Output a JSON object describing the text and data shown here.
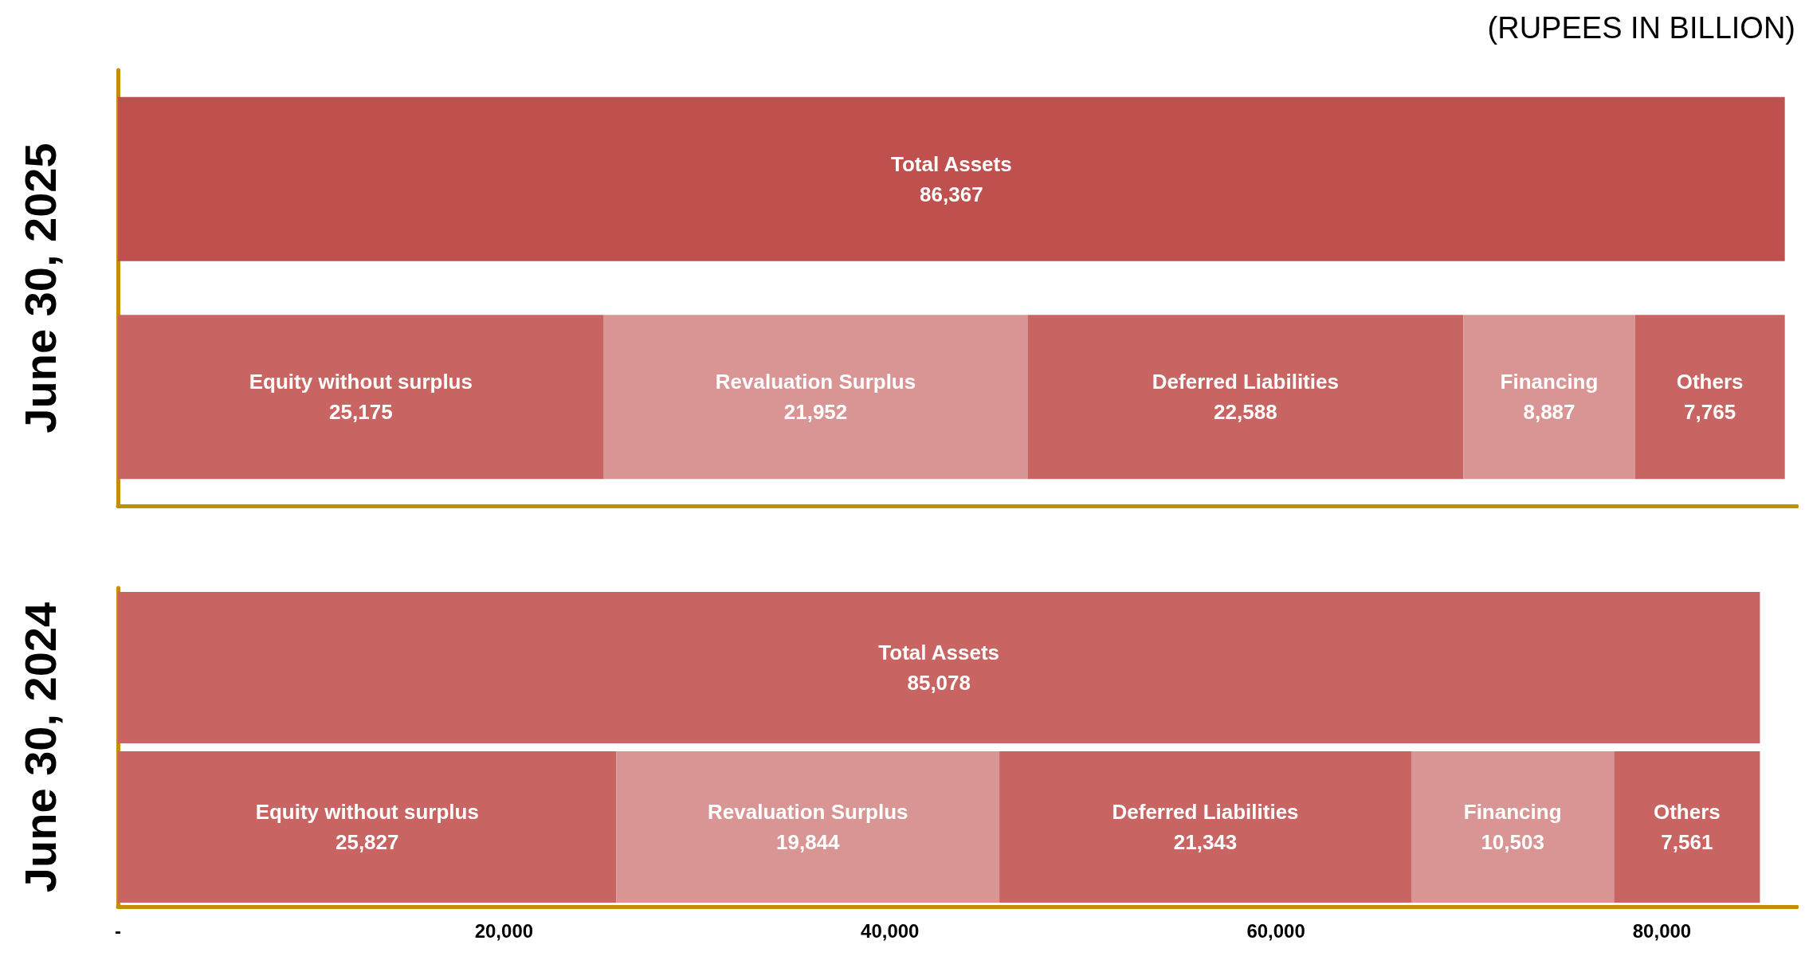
{
  "chart_data": [
    {
      "type": "bar",
      "orientation": "horizontal",
      "stacked": true,
      "ylabel": "June 30, 2025",
      "annotations": [
        "(RUPEES IN BILLION)"
      ],
      "categories": [
        null,
        null
      ],
      "xlim": [
        0,
        87000
      ],
      "tick_labels": false,
      "legend": false,
      "grid": false,
      "series": [
        {
          "name": "Total Assets",
          "color": "#c0504d",
          "values": [
            86367,
            null
          ],
          "value_labels": [
            "86,367",
            null
          ]
        },
        {
          "name": "Equity without surplus",
          "color": "#c86461",
          "values": [
            null,
            25175
          ],
          "value_labels": [
            null,
            "25,175"
          ]
        },
        {
          "name": "Revaluation Surplus",
          "color": "#d99594",
          "values": [
            null,
            21952
          ],
          "value_labels": [
            null,
            "21,952"
          ]
        },
        {
          "name": "Deferred Liabilities",
          "color": "#c86461",
          "values": [
            null,
            22588
          ],
          "value_labels": [
            null,
            "22,588"
          ]
        },
        {
          "name": "Financing",
          "color": "#d99594",
          "values": [
            null,
            8887
          ],
          "value_labels": [
            null,
            "8,887"
          ]
        },
        {
          "name": "Others",
          "color": "#c86461",
          "values": [
            null,
            7765
          ],
          "value_labels": [
            null,
            "7,765"
          ]
        }
      ]
    },
    {
      "type": "bar",
      "orientation": "horizontal",
      "stacked": true,
      "ylabel": "June 30, 2024",
      "categories": [
        null,
        null
      ],
      "xlim": [
        0,
        87000
      ],
      "xticks": [
        {
          "value": 0,
          "label": "-"
        },
        {
          "value": 20000,
          "label": "20,000"
        },
        {
          "value": 40000,
          "label": "40,000"
        },
        {
          "value": 60000,
          "label": "60,000"
        },
        {
          "value": 80000,
          "label": "80,000"
        }
      ],
      "tick_labels": "x",
      "legend": false,
      "grid": false,
      "series": [
        {
          "name": "Total Assets",
          "color": "#c86461",
          "values": [
            85078,
            null
          ],
          "value_labels": [
            "85,078",
            null
          ]
        },
        {
          "name": "Equity without surplus",
          "color": "#c86461",
          "values": [
            null,
            25827
          ],
          "value_labels": [
            null,
            "25,827"
          ]
        },
        {
          "name": "Revaluation Surplus",
          "color": "#d99594",
          "values": [
            null,
            19844
          ],
          "value_labels": [
            null,
            "19,844"
          ]
        },
        {
          "name": "Deferred Liabilities",
          "color": "#c86461",
          "values": [
            null,
            21343
          ],
          "value_labels": [
            null,
            "21,343"
          ]
        },
        {
          "name": "Financing",
          "color": "#d99594",
          "values": [
            null,
            10503
          ],
          "value_labels": [
            null,
            "10,503"
          ]
        },
        {
          "name": "Others",
          "color": "#c86461",
          "values": [
            null,
            7561
          ],
          "value_labels": [
            null,
            "7,561"
          ]
        }
      ]
    }
  ]
}
